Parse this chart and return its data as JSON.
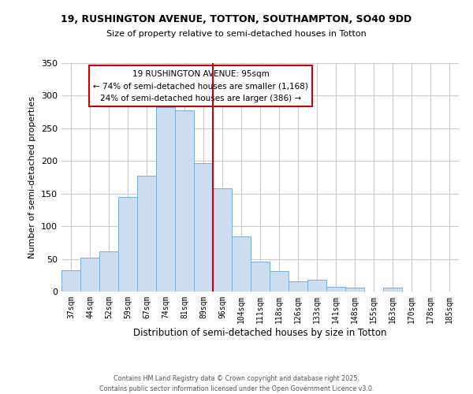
{
  "title_line1": "19, RUSHINGTON AVENUE, TOTTON, SOUTHAMPTON, SO40 9DD",
  "title_line2": "Size of property relative to semi-detached houses in Totton",
  "xlabel": "Distribution of semi-detached houses by size in Totton",
  "ylabel": "Number of semi-detached properties",
  "bar_labels": [
    "37sqm",
    "44sqm",
    "52sqm",
    "59sqm",
    "67sqm",
    "74sqm",
    "81sqm",
    "89sqm",
    "96sqm",
    "104sqm",
    "111sqm",
    "118sqm",
    "126sqm",
    "133sqm",
    "141sqm",
    "148sqm",
    "155sqm",
    "163sqm",
    "170sqm",
    "178sqm",
    "185sqm"
  ],
  "bar_values": [
    33,
    52,
    62,
    145,
    178,
    282,
    278,
    197,
    158,
    84,
    46,
    31,
    16,
    18,
    7,
    6,
    0,
    6,
    0,
    0,
    0
  ],
  "bar_color": "#ccddf2",
  "bar_edge_color": "#7aadd4",
  "vline_x_index": 8,
  "vline_color": "#cc0000",
  "annotation_title": "19 RUSHINGTON AVENUE: 95sqm",
  "annotation_line1": "← 74% of semi-detached houses are smaller (1,168)",
  "annotation_line2": "24% of semi-detached houses are larger (386) →",
  "annotation_box_edge_color": "#cc0000",
  "ylim": [
    0,
    350
  ],
  "yticks": [
    0,
    50,
    100,
    150,
    200,
    250,
    300,
    350
  ],
  "background_color": "#ffffff",
  "grid_color": "#cccccc",
  "footer_line1": "Contains HM Land Registry data © Crown copyright and database right 2025.",
  "footer_line2": "Contains public sector information licensed under the Open Government Licence v3.0."
}
